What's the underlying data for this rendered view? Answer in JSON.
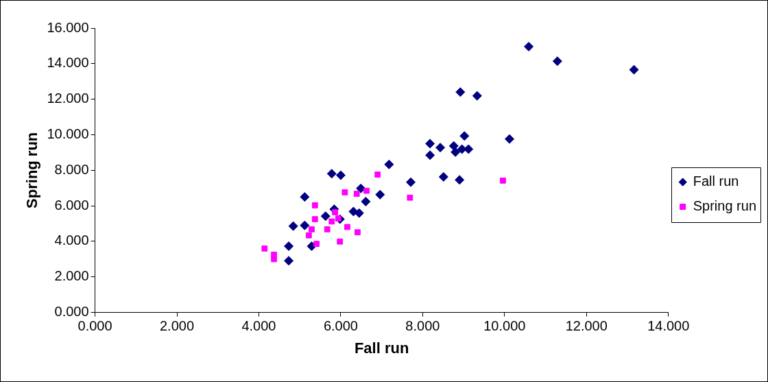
{
  "chart_data": {
    "type": "scatter",
    "xlabel": "Fall run",
    "ylabel": "Spring run",
    "legend": "right",
    "grid": false,
    "xlim": [
      0,
      14
    ],
    "ylim": [
      0,
      16
    ],
    "xticks": [
      {
        "value": 0,
        "label": "0.000"
      },
      {
        "value": 2,
        "label": "2.000"
      },
      {
        "value": 4,
        "label": "4.000"
      },
      {
        "value": 6,
        "label": "6.000"
      },
      {
        "value": 8,
        "label": "8.000"
      },
      {
        "value": 10,
        "label": "10.000"
      },
      {
        "value": 12,
        "label": "12.000"
      },
      {
        "value": 14,
        "label": "14.000"
      }
    ],
    "yticks": [
      {
        "value": 0,
        "label": "0.000"
      },
      {
        "value": 2,
        "label": "2.000"
      },
      {
        "value": 4,
        "label": "4.000"
      },
      {
        "value": 6,
        "label": "6.000"
      },
      {
        "value": 8,
        "label": "8.000"
      },
      {
        "value": 10,
        "label": "10.000"
      },
      {
        "value": 12,
        "label": "12.000"
      },
      {
        "value": 14,
        "label": "14.000"
      },
      {
        "value": 16,
        "label": "16.000"
      }
    ],
    "series": [
      {
        "name": "Fall run",
        "color": "#000080",
        "marker": "diamond",
        "x": [
          7.18,
          5.78,
          6.0,
          7.71,
          6.49,
          6.96,
          6.61,
          5.12,
          6.31,
          6.45,
          5.84,
          5.63,
          5.98,
          5.12,
          4.84,
          5.29,
          4.73,
          4.73,
          9.02,
          8.18,
          8.43,
          8.76,
          8.8,
          8.96,
          9.12,
          8.18,
          10.12,
          8.51,
          8.9,
          10.59,
          11.29,
          13.16,
          9.33,
          8.92
        ],
        "values": [
          8.33,
          7.81,
          7.72,
          7.33,
          6.98,
          6.63,
          6.24,
          6.5,
          5.68,
          5.59,
          5.81,
          5.42,
          5.25,
          4.9,
          4.86,
          3.73,
          3.73,
          2.91,
          9.93,
          9.5,
          9.28,
          9.37,
          9.02,
          9.19,
          9.19,
          8.85,
          9.76,
          7.63,
          7.46,
          14.96,
          14.14,
          13.66,
          12.19,
          12.4
        ]
      },
      {
        "name": "Spring run",
        "color": "#ff00ff",
        "marker": "square",
        "x": [
          6.9,
          7.69,
          6.1,
          6.39,
          6.63,
          5.37,
          5.37,
          5.86,
          5.78,
          5.94,
          5.29,
          5.22,
          5.67,
          6.16,
          6.41,
          5.41,
          5.98,
          4.14,
          4.37,
          4.37,
          9.96
        ],
        "values": [
          7.76,
          6.46,
          6.76,
          6.68,
          6.85,
          6.03,
          5.25,
          5.64,
          5.12,
          5.29,
          4.68,
          4.34,
          4.68,
          4.81,
          4.51,
          3.86,
          3.99,
          3.6,
          3.25,
          3.0,
          7.42
        ]
      }
    ]
  }
}
